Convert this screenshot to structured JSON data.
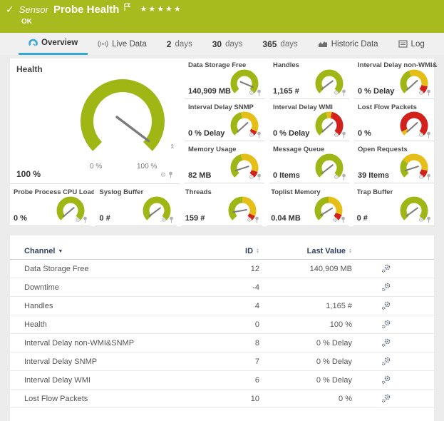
{
  "colors": {
    "header_green": "#a8bb1e",
    "gauge_green": "#9fb614",
    "gauge_yellow": "#e5bf17",
    "gauge_red": "#d2211a",
    "needle_gray": "#7b7b7b",
    "active_tab_blue": "#35a7d7",
    "table_header_text": "#31425f"
  },
  "header": {
    "check": "✓",
    "sensor_label": "Sensor",
    "title": "Probe Health",
    "stars": "★★★★★",
    "status": "OK"
  },
  "tabs": [
    {
      "label": "Overview",
      "icon": "gauge-icon",
      "active": true
    },
    {
      "label": "Live Data",
      "icon": "live-data-icon"
    },
    {
      "label": "2",
      "suffix": "days"
    },
    {
      "label": "30",
      "suffix": "days"
    },
    {
      "label": "365",
      "suffix": "days"
    },
    {
      "label": "Historic Data",
      "icon": "historic-data-icon"
    },
    {
      "label": "Log",
      "icon": "log-icon"
    }
  ],
  "health_gauge": {
    "title": "Health",
    "value": "100 %",
    "min_label": "0 %",
    "max_label": "100 %",
    "mean_symbol": "x̄",
    "needle_deg": 127,
    "segments": [
      {
        "c": "green",
        "f": 1
      }
    ]
  },
  "gauges": [
    {
      "name": "Data Storage Free",
      "value": "140,909 MB",
      "needle_deg": 113,
      "segments": [
        {
          "c": "green",
          "f": 1
        }
      ]
    },
    {
      "name": "Handles",
      "value": "1,165 #",
      "needle_deg": -127,
      "segments": [
        {
          "c": "green",
          "f": 1
        }
      ]
    },
    {
      "name": "Interval Delay non-WMI&SNMP",
      "value": "0 % Delay",
      "needle_deg": -132,
      "segments": [
        {
          "c": "green",
          "f": 0.42
        },
        {
          "c": "yellow",
          "f": 0.46
        },
        {
          "c": "red",
          "f": 0.12
        }
      ]
    },
    {
      "name": "Interval Delay SNMP",
      "value": "0 % Delay",
      "needle_deg": -132,
      "segments": [
        {
          "c": "green",
          "f": 0.44
        },
        {
          "c": "yellow",
          "f": 0.49
        },
        {
          "c": "red",
          "f": 0.07
        }
      ]
    },
    {
      "name": "Interval Delay WMI",
      "value": "0 % Delay",
      "needle_deg": -132,
      "segments": [
        {
          "c": "green",
          "f": 0.45
        },
        {
          "c": "yellow",
          "f": 0.09
        },
        {
          "c": "red",
          "f": 0.46
        }
      ]
    },
    {
      "name": "Lost Flow Packets",
      "value": "0 %",
      "needle_deg": -132,
      "segments": [
        {
          "c": "yellow",
          "f": 0.07
        },
        {
          "c": "red",
          "f": 0.93
        }
      ]
    },
    {
      "name": "Memory Usage",
      "value": "82 MB",
      "needle_deg": -108,
      "segments": [
        {
          "c": "green",
          "f": 0.44
        },
        {
          "c": "yellow",
          "f": 0.46
        },
        {
          "c": "red",
          "f": 0.1
        }
      ]
    },
    {
      "name": "Message Queue",
      "value": "0 Items",
      "needle_deg": -128,
      "segments": [
        {
          "c": "green",
          "f": 1
        }
      ]
    },
    {
      "name": "Open Requests",
      "value": "39 Items",
      "needle_deg": -108,
      "segments": [
        {
          "c": "green",
          "f": 0.3
        },
        {
          "c": "yellow",
          "f": 0.58
        },
        {
          "c": "red",
          "f": 0.12
        }
      ]
    }
  ],
  "bottom_gauges": [
    {
      "name": "Probe Process CPU Load",
      "value": "0 %",
      "needle_deg": -130,
      "segments": [
        {
          "c": "green",
          "f": 1
        }
      ]
    },
    {
      "name": "Syslog Buffer",
      "value": "0 #",
      "needle_deg": -127,
      "segments": [
        {
          "c": "green",
          "f": 1
        }
      ]
    },
    {
      "name": "Threads",
      "value": "159 #",
      "needle_deg": -100,
      "segments": [
        {
          "c": "green",
          "f": 0.5
        },
        {
          "c": "yellow",
          "f": 0.42
        },
        {
          "c": "red",
          "f": 0.08
        }
      ]
    },
    {
      "name": "Toplist Memory",
      "value": "0.04 MB",
      "needle_deg": -122,
      "segments": [
        {
          "c": "green",
          "f": 0.5
        },
        {
          "c": "yellow",
          "f": 0.4
        },
        {
          "c": "red",
          "f": 0.1
        }
      ]
    },
    {
      "name": "Trap Buffer",
      "value": "0 #",
      "needle_deg": -126,
      "segments": [
        {
          "c": "green",
          "f": 1
        }
      ]
    }
  ],
  "channel_table": {
    "columns": [
      {
        "label": "Channel",
        "sort": "desc"
      },
      {
        "label": "ID",
        "sort": "both"
      },
      {
        "label": "Last Value",
        "sort": "both"
      }
    ],
    "rows": [
      {
        "channel": "Data Storage Free",
        "id": "12",
        "last_value": "140,909 MB"
      },
      {
        "channel": "Downtime",
        "id": "-4",
        "last_value": ""
      },
      {
        "channel": "Handles",
        "id": "4",
        "last_value": "1,165 #"
      },
      {
        "channel": "Health",
        "id": "0",
        "last_value": "100 %"
      },
      {
        "channel": "Interval Delay non-WMI&SNMP",
        "id": "8",
        "last_value": "0 % Delay"
      },
      {
        "channel": "Interval Delay SNMP",
        "id": "7",
        "last_value": "0 % Delay"
      },
      {
        "channel": "Interval Delay WMI",
        "id": "6",
        "last_value": "0 % Delay"
      },
      {
        "channel": "Lost Flow Packets",
        "id": "10",
        "last_value": "0 %"
      }
    ]
  }
}
